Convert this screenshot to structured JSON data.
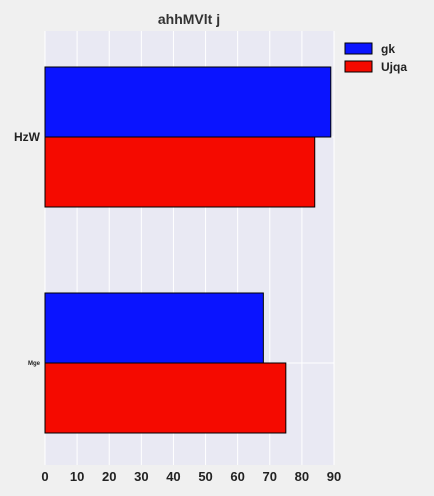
{
  "chart_data": {
    "type": "bar",
    "orientation": "horizontal",
    "title": "ahhMVlt j",
    "xlabel": "",
    "ylabel": "",
    "categories": [
      "HzW",
      "Mge"
    ],
    "series": [
      {
        "name": "gk",
        "values": [
          89,
          68
        ],
        "color": "#0a14ff"
      },
      {
        "name": "Ujqa",
        "values": [
          84,
          75
        ],
        "color": "#f50a00"
      }
    ],
    "xlim": [
      0,
      90
    ],
    "xticks": [
      0,
      10,
      20,
      30,
      40,
      50,
      60,
      70,
      80,
      90
    ],
    "grid": true,
    "legend": "top-right",
    "colors": {
      "plot_bg": "#e9e9f3",
      "page_bg": "#f0f0f0",
      "grid": "#ffffff"
    }
  }
}
